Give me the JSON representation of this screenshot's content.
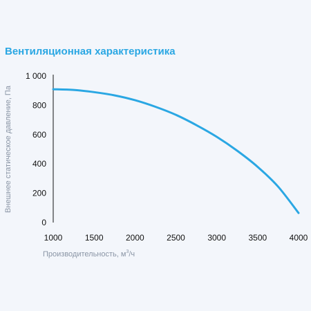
{
  "chart_data": {
    "type": "line",
    "title": "Вентиляционная характеристика",
    "xlabel_main": "Производительность, м",
    "xlabel_sup": "3",
    "xlabel_tail": "/ч",
    "ylabel": "Внешнее статическое давление, Па",
    "xlim": [
      1000,
      4000
    ],
    "ylim": [
      0,
      1000
    ],
    "x_ticks": [
      1000,
      1500,
      2000,
      2500,
      3000,
      3500,
      4000
    ],
    "x_tick_labels": [
      "1000",
      "1500",
      "2000",
      "2500",
      "3000",
      "3500",
      "4000"
    ],
    "y_ticks": [
      0,
      200,
      400,
      600,
      800,
      1000
    ],
    "y_tick_labels": [
      "0",
      "200",
      "400",
      "600",
      "800",
      "1 000"
    ],
    "grid": false,
    "series": [
      {
        "color": "#2aa7e3",
        "x": [
          1000,
          1250,
          1500,
          1750,
          2000,
          2250,
          2500,
          2750,
          3000,
          3250,
          3500,
          3750,
          4000
        ],
        "y": [
          910,
          905,
          890,
          868,
          835,
          790,
          735,
          665,
          585,
          490,
          380,
          245,
          65
        ]
      }
    ]
  }
}
